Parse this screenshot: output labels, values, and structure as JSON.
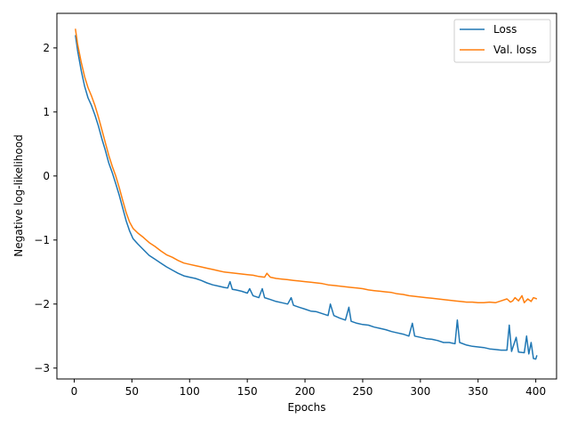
{
  "chart_data": {
    "type": "line",
    "xlabel": "Epochs",
    "ylabel": "Negative log-likelihood",
    "xlim": [
      -15,
      418
    ],
    "ylim": [
      -3.17,
      2.54
    ],
    "xticks": [
      0,
      50,
      100,
      150,
      200,
      250,
      300,
      350,
      400
    ],
    "yticks": [
      -3,
      -2,
      -1,
      0,
      1,
      2
    ],
    "xtick_labels": [
      "0",
      "50",
      "100",
      "150",
      "200",
      "250",
      "300",
      "350",
      "400"
    ],
    "ytick_labels": [
      "−3",
      "−2",
      "−1",
      "0",
      "1",
      "2"
    ],
    "grid": false,
    "legend_position": "top-right",
    "series": [
      {
        "name": "Loss",
        "color": "#1f77b4",
        "points": [
          [
            1,
            2.2
          ],
          [
            3,
            1.95
          ],
          [
            6,
            1.65
          ],
          [
            9,
            1.4
          ],
          [
            12,
            1.22
          ],
          [
            15,
            1.1
          ],
          [
            18,
            0.95
          ],
          [
            21,
            0.78
          ],
          [
            24,
            0.58
          ],
          [
            27,
            0.4
          ],
          [
            30,
            0.2
          ],
          [
            33,
            0.05
          ],
          [
            36,
            -0.12
          ],
          [
            39,
            -0.3
          ],
          [
            42,
            -0.5
          ],
          [
            45,
            -0.7
          ],
          [
            48,
            -0.86
          ],
          [
            51,
            -0.98
          ],
          [
            55,
            -1.06
          ],
          [
            60,
            -1.15
          ],
          [
            65,
            -1.24
          ],
          [
            70,
            -1.3
          ],
          [
            75,
            -1.36
          ],
          [
            80,
            -1.42
          ],
          [
            85,
            -1.47
          ],
          [
            90,
            -1.52
          ],
          [
            95,
            -1.56
          ],
          [
            100,
            -1.58
          ],
          [
            105,
            -1.6
          ],
          [
            110,
            -1.63
          ],
          [
            115,
            -1.67
          ],
          [
            120,
            -1.7
          ],
          [
            125,
            -1.72
          ],
          [
            130,
            -1.74
          ],
          [
            133,
            -1.75
          ],
          [
            135,
            -1.65
          ],
          [
            137,
            -1.77
          ],
          [
            140,
            -1.78
          ],
          [
            145,
            -1.8
          ],
          [
            150,
            -1.83
          ],
          [
            152,
            -1.76
          ],
          [
            155,
            -1.87
          ],
          [
            160,
            -1.9
          ],
          [
            163,
            -1.76
          ],
          [
            165,
            -1.9
          ],
          [
            170,
            -1.93
          ],
          [
            175,
            -1.96
          ],
          [
            180,
            -1.98
          ],
          [
            185,
            -2.0
          ],
          [
            188,
            -1.9
          ],
          [
            190,
            -2.02
          ],
          [
            195,
            -2.05
          ],
          [
            200,
            -2.08
          ],
          [
            205,
            -2.11
          ],
          [
            210,
            -2.12
          ],
          [
            215,
            -2.15
          ],
          [
            220,
            -2.18
          ],
          [
            222,
            -2.0
          ],
          [
            225,
            -2.18
          ],
          [
            230,
            -2.22
          ],
          [
            235,
            -2.25
          ],
          [
            238,
            -2.05
          ],
          [
            240,
            -2.27
          ],
          [
            245,
            -2.3
          ],
          [
            250,
            -2.32
          ],
          [
            255,
            -2.33
          ],
          [
            260,
            -2.36
          ],
          [
            265,
            -2.38
          ],
          [
            270,
            -2.4
          ],
          [
            275,
            -2.43
          ],
          [
            280,
            -2.45
          ],
          [
            285,
            -2.47
          ],
          [
            290,
            -2.5
          ],
          [
            293,
            -2.3
          ],
          [
            295,
            -2.5
          ],
          [
            300,
            -2.52
          ],
          [
            305,
            -2.54
          ],
          [
            310,
            -2.55
          ],
          [
            315,
            -2.57
          ],
          [
            320,
            -2.6
          ],
          [
            325,
            -2.6
          ],
          [
            330,
            -2.62
          ],
          [
            332,
            -2.25
          ],
          [
            334,
            -2.6
          ],
          [
            340,
            -2.64
          ],
          [
            345,
            -2.66
          ],
          [
            350,
            -2.67
          ],
          [
            355,
            -2.68
          ],
          [
            360,
            -2.7
          ],
          [
            365,
            -2.71
          ],
          [
            370,
            -2.72
          ],
          [
            375,
            -2.72
          ],
          [
            377,
            -2.33
          ],
          [
            379,
            -2.74
          ],
          [
            383,
            -2.52
          ],
          [
            385,
            -2.75
          ],
          [
            390,
            -2.76
          ],
          [
            392,
            -2.5
          ],
          [
            394,
            -2.78
          ],
          [
            396,
            -2.6
          ],
          [
            398,
            -2.85
          ],
          [
            400,
            -2.86
          ],
          [
            401,
            -2.8
          ]
        ]
      },
      {
        "name": "Val. loss",
        "color": "#ff7f0e",
        "points": [
          [
            1,
            2.3
          ],
          [
            3,
            2.05
          ],
          [
            6,
            1.78
          ],
          [
            9,
            1.55
          ],
          [
            12,
            1.38
          ],
          [
            15,
            1.25
          ],
          [
            18,
            1.1
          ],
          [
            21,
            0.92
          ],
          [
            24,
            0.72
          ],
          [
            27,
            0.52
          ],
          [
            30,
            0.32
          ],
          [
            33,
            0.15
          ],
          [
            36,
            0.0
          ],
          [
            39,
            -0.18
          ],
          [
            42,
            -0.38
          ],
          [
            45,
            -0.57
          ],
          [
            48,
            -0.72
          ],
          [
            51,
            -0.82
          ],
          [
            55,
            -0.89
          ],
          [
            60,
            -0.96
          ],
          [
            65,
            -1.04
          ],
          [
            70,
            -1.1
          ],
          [
            75,
            -1.17
          ],
          [
            80,
            -1.23
          ],
          [
            85,
            -1.27
          ],
          [
            90,
            -1.32
          ],
          [
            95,
            -1.36
          ],
          [
            100,
            -1.38
          ],
          [
            105,
            -1.4
          ],
          [
            110,
            -1.42
          ],
          [
            115,
            -1.44
          ],
          [
            120,
            -1.46
          ],
          [
            125,
            -1.48
          ],
          [
            130,
            -1.5
          ],
          [
            135,
            -1.51
          ],
          [
            140,
            -1.52
          ],
          [
            145,
            -1.53
          ],
          [
            150,
            -1.54
          ],
          [
            155,
            -1.55
          ],
          [
            160,
            -1.57
          ],
          [
            165,
            -1.58
          ],
          [
            167,
            -1.52
          ],
          [
            170,
            -1.58
          ],
          [
            175,
            -1.6
          ],
          [
            180,
            -1.61
          ],
          [
            185,
            -1.62
          ],
          [
            190,
            -1.63
          ],
          [
            195,
            -1.64
          ],
          [
            200,
            -1.65
          ],
          [
            205,
            -1.66
          ],
          [
            210,
            -1.67
          ],
          [
            215,
            -1.68
          ],
          [
            220,
            -1.7
          ],
          [
            225,
            -1.71
          ],
          [
            230,
            -1.72
          ],
          [
            235,
            -1.73
          ],
          [
            240,
            -1.74
          ],
          [
            245,
            -1.75
          ],
          [
            250,
            -1.76
          ],
          [
            255,
            -1.78
          ],
          [
            260,
            -1.79
          ],
          [
            265,
            -1.8
          ],
          [
            270,
            -1.81
          ],
          [
            275,
            -1.82
          ],
          [
            280,
            -1.84
          ],
          [
            285,
            -1.85
          ],
          [
            290,
            -1.87
          ],
          [
            295,
            -1.88
          ],
          [
            300,
            -1.89
          ],
          [
            305,
            -1.9
          ],
          [
            310,
            -1.91
          ],
          [
            315,
            -1.92
          ],
          [
            320,
            -1.93
          ],
          [
            325,
            -1.94
          ],
          [
            330,
            -1.95
          ],
          [
            335,
            -1.96
          ],
          [
            340,
            -1.97
          ],
          [
            345,
            -1.97
          ],
          [
            350,
            -1.98
          ],
          [
            355,
            -1.98
          ],
          [
            360,
            -1.97
          ],
          [
            365,
            -1.98
          ],
          [
            370,
            -1.95
          ],
          [
            375,
            -1.92
          ],
          [
            378,
            -1.97
          ],
          [
            380,
            -1.95
          ],
          [
            382,
            -1.9
          ],
          [
            385,
            -1.95
          ],
          [
            388,
            -1.87
          ],
          [
            390,
            -1.98
          ],
          [
            393,
            -1.92
          ],
          [
            396,
            -1.96
          ],
          [
            398,
            -1.9
          ],
          [
            401,
            -1.92
          ]
        ]
      }
    ]
  }
}
